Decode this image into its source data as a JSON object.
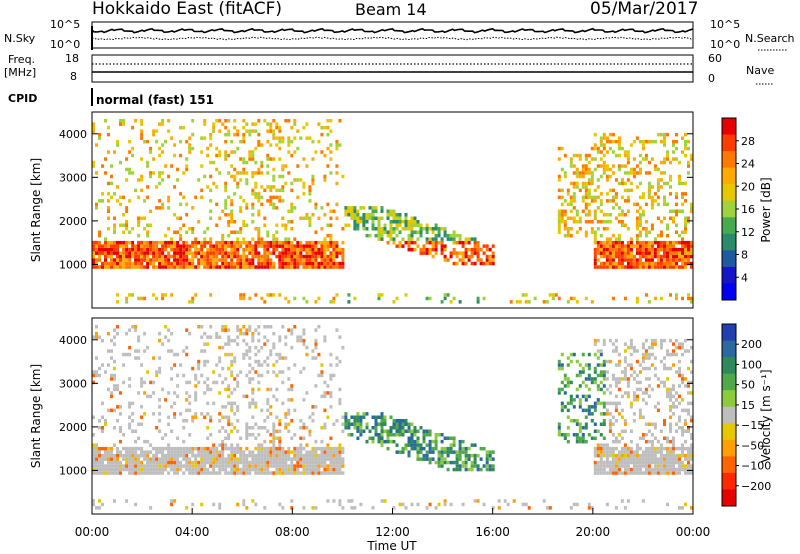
{
  "header": {
    "station": "Hokkaido East (fitACF)",
    "beam": "Beam 14",
    "date": "05/Mar/2017"
  },
  "noise_panel": {
    "left_label": "N.Sky",
    "right_label": "N.Search",
    "left_ticks": [
      "10^5",
      "10^0"
    ],
    "right_ticks": [
      "10^5",
      "10^0"
    ]
  },
  "freq_panel": {
    "left_label_line1": "Freq.",
    "left_label_line2": "[MHz]",
    "left_ticks": [
      "18",
      "8"
    ],
    "right_label": "Nave",
    "right_ticks": [
      "60",
      "0"
    ]
  },
  "cpid_panel": {
    "label": "CPID",
    "text": "normal (fast) 151"
  },
  "chart_data": [
    {
      "type": "heatmap",
      "title": "",
      "xlabel": "",
      "ylabel": "Slant Range [km]",
      "xlim": [
        0,
        24
      ],
      "ylim": [
        0,
        4500
      ],
      "y_ticks": [
        "4000",
        "3000",
        "2000",
        "1000"
      ],
      "colorbar": {
        "label": "Power [dB]",
        "ticks": [
          "28",
          "24",
          "20",
          "16",
          "12",
          "8",
          "4"
        ],
        "range": [
          0,
          32
        ],
        "colors": [
          "#e60000",
          "#ff3c00",
          "#ff7800",
          "#ffaa00",
          "#e6c800",
          "#9fd23c",
          "#46aa50",
          "#2a8a6a",
          "#1e5aa0",
          "#1414c8",
          "#0000f0"
        ]
      }
    },
    {
      "type": "heatmap",
      "title": "",
      "xlabel": "Time UT",
      "ylabel": "Slant Range [km]",
      "xlim": [
        0,
        24
      ],
      "ylim": [
        0,
        4500
      ],
      "y_ticks": [
        "4000",
        "3000",
        "2000",
        "1000"
      ],
      "x_ticks": [
        "00:00",
        "04:00",
        "08:00",
        "12:00",
        "16:00",
        "20:00",
        "00:00"
      ],
      "colorbar": {
        "label": "Velocity [m s⁻¹]",
        "ticks": [
          "200",
          "100",
          "50",
          "15",
          "−15",
          "−50",
          "−100",
          "−200"
        ],
        "range": [
          -250,
          250
        ],
        "colors": [
          "#2040b0",
          "#2a6aa0",
          "#2e8a5a",
          "#4fa84a",
          "#8ccc3c",
          "#bebebe",
          "#e6c800",
          "#ffa000",
          "#ff6400",
          "#ff2800",
          "#e60000"
        ]
      }
    }
  ]
}
